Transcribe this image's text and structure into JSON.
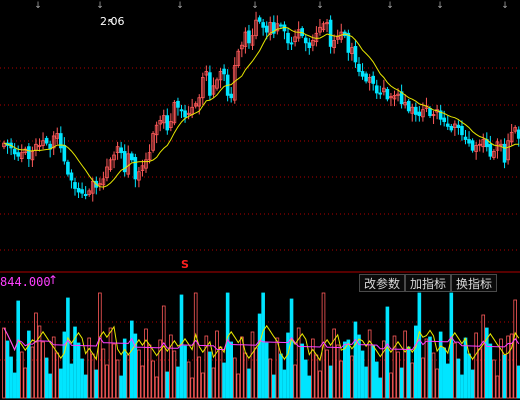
{
  "price_panel": {
    "peak_label": "2.06",
    "signal_label": "S"
  },
  "volume_panel": {
    "value_label": "844.000",
    "arrow": "↑"
  },
  "buttons": {
    "modify_params": "改参数",
    "add_indicator": "加指标",
    "change_indicator": "换指标"
  },
  "colors": {
    "up": "#ff5a5a",
    "down": "#00e5ff",
    "ma_price": "#e8e800",
    "ma_vol_1": "#e8e800",
    "ma_vol_2": "#ff40ff",
    "grid": "#b00000",
    "separator": "#b00000"
  },
  "icons": [
    "arrow-down-icon",
    "cross-marker-icon",
    "arrow-up-icon"
  ]
}
